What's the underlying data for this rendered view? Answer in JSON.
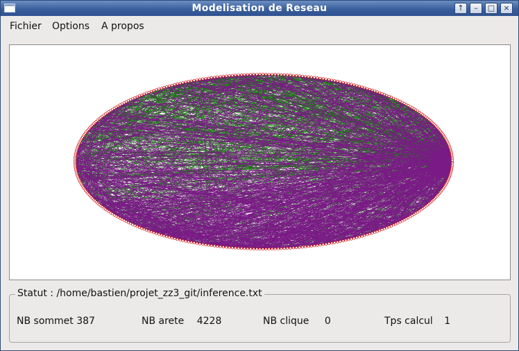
{
  "window": {
    "title": "Modelisation de Reseau",
    "buttons": {
      "up": "↑",
      "minimize": "–",
      "maximize": "□",
      "close": "×"
    }
  },
  "menu": {
    "items": [
      {
        "label": "Fichier"
      },
      {
        "label": "Options"
      },
      {
        "label": "A propos"
      }
    ]
  },
  "graph": {
    "node_color": "#cc0000",
    "edge_colors": [
      "#1a7a12",
      "#7a1a86"
    ]
  },
  "status": {
    "label": "Statut :",
    "path": "/home/bastien/projet_zz3_git/inference.txt",
    "stats": [
      {
        "label": "NB sommet",
        "value": "387"
      },
      {
        "label": "NB arete",
        "value": "4228"
      },
      {
        "label": "NB clique",
        "value": "0"
      },
      {
        "label": "Tps calcul",
        "value": "1"
      }
    ]
  }
}
